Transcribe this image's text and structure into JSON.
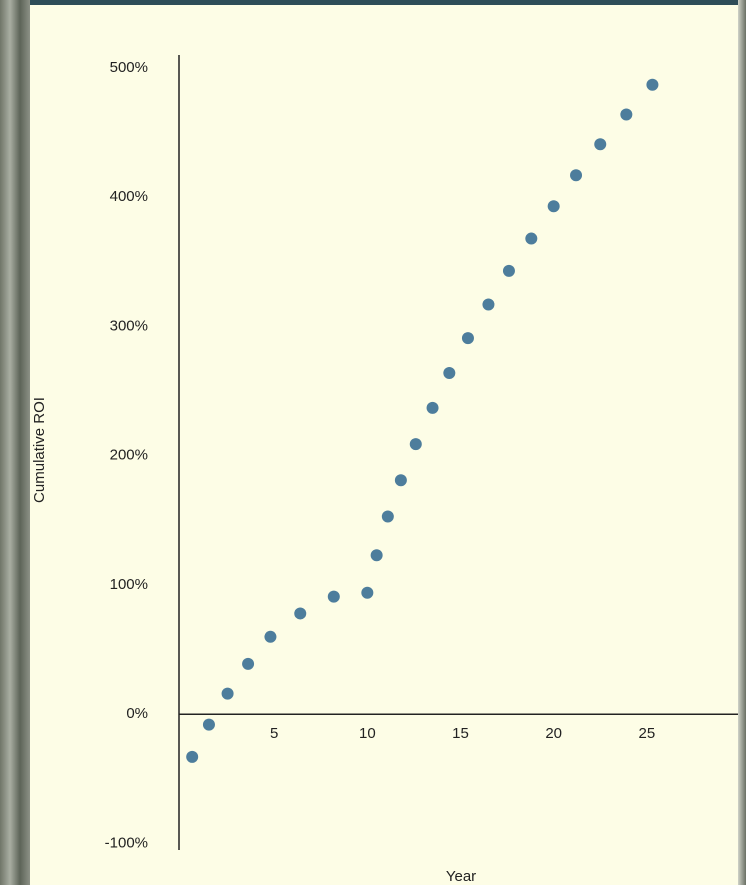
{
  "chart_data": {
    "type": "scatter",
    "x_label": "Year",
    "y_label": "Cumulative ROI",
    "color": "#4d7d9c",
    "x": [
      0.6,
      1.5,
      2.5,
      3.6,
      4.8,
      6.4,
      8.2,
      10.0,
      10.5,
      11.1,
      11.8,
      12.6,
      13.5,
      14.4,
      15.4,
      16.5,
      17.6,
      18.8,
      20.0,
      21.2,
      22.5,
      23.9,
      25.3
    ],
    "values": [
      -33,
      -8,
      16,
      39,
      60,
      78,
      91,
      94,
      123,
      153,
      181,
      209,
      237,
      264,
      291,
      317,
      343,
      368,
      393,
      417,
      441,
      464,
      487
    ],
    "xlim": [
      0,
      30
    ],
    "ylim": [
      -105,
      510
    ],
    "xticks": [
      5,
      10,
      15,
      20,
      25
    ],
    "yticks": [
      {
        "value": -100,
        "label": "-100%"
      },
      {
        "value": 0,
        "label": "0%"
      },
      {
        "value": 100,
        "label": "100%"
      },
      {
        "value": 200,
        "label": "200%"
      },
      {
        "value": 300,
        "label": "300%"
      },
      {
        "value": 400,
        "label": "400%"
      },
      {
        "value": 500,
        "label": "500%"
      }
    ],
    "grid": false
  }
}
